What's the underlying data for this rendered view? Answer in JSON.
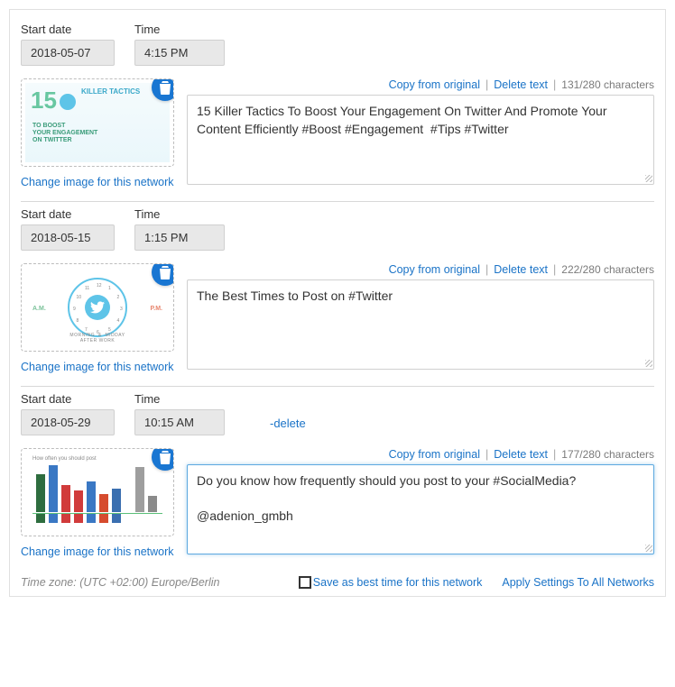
{
  "labels": {
    "start_date": "Start date",
    "time": "Time",
    "copy_from_original": "Copy from original",
    "delete_text": "Delete text",
    "change_image": "Change image for this network",
    "delete_link": "-delete",
    "timezone": "Time zone: (UTC +02:00) Europe/Berlin",
    "save_best": "Save as best time for this network",
    "apply_all": "Apply Settings To All Networks"
  },
  "colors": {
    "link": "#1a73c7",
    "border": "#d0d0d0",
    "field_bg": "#e8e8e8",
    "trash_bg": "#1976d2",
    "muted": "#7a7a7a"
  },
  "posts": [
    {
      "date": "2018-05-07",
      "time": "4:15 PM",
      "text": "15 Killer Tactics To Boost Your Engagement On Twitter And Promote Your Content Efficiently #Boost #Engagement  #Tips #Twitter",
      "char_count": "131/280 characters",
      "show_delete_top": false,
      "active": false,
      "thumb": "tactics"
    },
    {
      "date": "2018-05-15",
      "time": "1:15 PM",
      "text": "The Best Times to Post on #Twitter",
      "char_count": "222/280 characters",
      "show_delete_top": false,
      "active": false,
      "thumb": "clock"
    },
    {
      "date": "2018-05-29",
      "time": "10:15 AM",
      "text": "Do you know how frequently should you post to your #SocialMedia?\n\n@adenion_gmbh",
      "char_count": "177/280 characters",
      "show_delete_top": true,
      "active": true,
      "thumb": "bars"
    }
  ],
  "thumb_styling": {
    "tactics": {
      "bg_gradient": [
        "#f5fbfd",
        "#eaf7fb"
      ],
      "number_text": "15",
      "number_color": "#68c7a1",
      "title": "KILLER TACTICS",
      "subtitle": "TO BOOST\nYOUR ENGAGEMENT\nON TWITTER",
      "accent_color": "#3aa8c9"
    },
    "clock": {
      "ring_color": "#5ec4e8",
      "center_color": "#5ec4e8",
      "caption": "MORNING & MIDDAY\nAFTER WORK",
      "am_label": "A.M.",
      "pm_label": "P.M.",
      "digits": [
        "12",
        "1",
        "2",
        "3",
        "4",
        "5",
        "6",
        "7",
        "8",
        "9",
        "10",
        "11"
      ]
    },
    "bars": {
      "title": "How often you should post",
      "daily_bars": [
        {
          "h": 42,
          "c": "#2e6d3f"
        },
        {
          "h": 52,
          "c": "#3a78c4"
        },
        {
          "h": 30,
          "c": "#d13b3b"
        },
        {
          "h": 24,
          "c": "#d13b3b"
        },
        {
          "h": 34,
          "c": "#3a78c4"
        },
        {
          "h": 20,
          "c": "#d64b2e"
        },
        {
          "h": 26,
          "c": "#3a6fb0"
        }
      ],
      "monthly_bars": [
        {
          "h": 50,
          "c": "#9e9e9e"
        },
        {
          "h": 18,
          "c": "#8a8a8a"
        }
      ],
      "icon_colors": [
        "#2e6d3f",
        "#3a78c4",
        "#d13b3b",
        "#d13b3b",
        "#3a78c4",
        "#d64b2e",
        "#3a6fb0"
      ]
    }
  }
}
